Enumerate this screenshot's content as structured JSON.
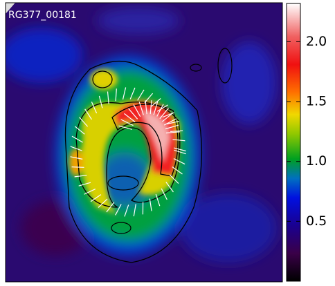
{
  "image": {
    "label": "RG377_00181"
  },
  "colorbar": {
    "lim": [
      0,
      2.32
    ],
    "ticks": [
      {
        "value": 0.5,
        "label": "0.5"
      },
      {
        "value": 1.0,
        "label": "1.0"
      },
      {
        "value": 1.5,
        "label": "1.5"
      },
      {
        "value": 2.0,
        "label": "2.0"
      }
    ]
  }
}
